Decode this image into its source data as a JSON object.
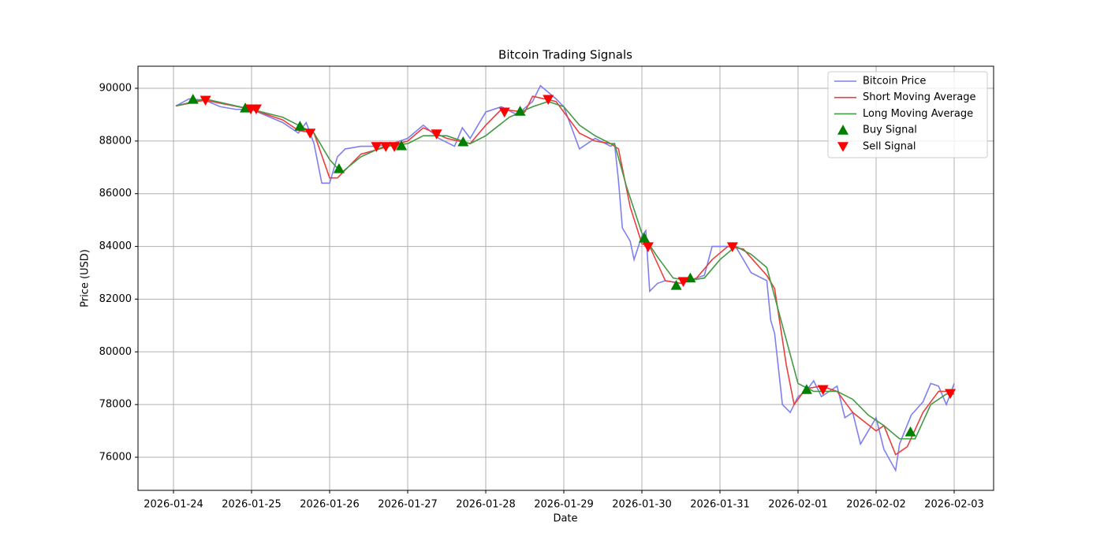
{
  "chart_data": {
    "type": "line",
    "title": "Bitcoin Trading Signals",
    "x_label": "Date",
    "y_label": "Price (USD)",
    "xlim": [
      -0.4545,
      10.505
    ],
    "ylim": [
      74744,
      90838
    ],
    "xticks": [
      {
        "value": 0,
        "label": "2026-01-24"
      },
      {
        "value": 1,
        "label": "2026-01-25"
      },
      {
        "value": 2,
        "label": "2026-01-26"
      },
      {
        "value": 3,
        "label": "2026-01-27"
      },
      {
        "value": 4,
        "label": "2026-01-28"
      },
      {
        "value": 5,
        "label": "2026-01-29"
      },
      {
        "value": 6,
        "label": "2026-01-30"
      },
      {
        "value": 7,
        "label": "2026-01-31"
      },
      {
        "value": 8,
        "label": "2026-02-01"
      },
      {
        "value": 9,
        "label": "2026-02-02"
      },
      {
        "value": 10,
        "label": "2026-02-03"
      }
    ],
    "yticks": [
      76000,
      78000,
      80000,
      82000,
      84000,
      86000,
      88000,
      90000
    ],
    "grid": true,
    "legend": "upper right",
    "series": [
      {
        "name": "Bitcoin Price",
        "kind": "line",
        "color": "#7f7ff0",
        "x": [
          0.03,
          0.2,
          0.4,
          0.6,
          0.8,
          1.0,
          1.2,
          1.4,
          1.6,
          1.7,
          1.8,
          1.9,
          2.0,
          2.1,
          2.2,
          2.4,
          2.6,
          2.8,
          3.0,
          3.2,
          3.4,
          3.6,
          3.7,
          3.8,
          4.0,
          4.2,
          4.4,
          4.6,
          4.7,
          4.9,
          5.0,
          5.1,
          5.2,
          5.4,
          5.6,
          5.65,
          5.7,
          5.75,
          5.85,
          5.9,
          6.0,
          6.05,
          6.1,
          6.2,
          6.3,
          6.5,
          6.6,
          6.8,
          6.9,
          7.0,
          7.2,
          7.4,
          7.6,
          7.65,
          7.7,
          7.8,
          7.9,
          8.0,
          8.1,
          8.2,
          8.3,
          8.5,
          8.6,
          8.7,
          8.8,
          9.0,
          9.1,
          9.25,
          9.3,
          9.45,
          9.6,
          9.7,
          9.8,
          9.9,
          10.0
        ],
        "values": [
          89330,
          89600,
          89550,
          89300,
          89200,
          89200,
          88950,
          88700,
          88300,
          88700,
          87900,
          86400,
          86400,
          87400,
          87700,
          87800,
          87800,
          87900,
          88100,
          88600,
          88100,
          87800,
          88500,
          88100,
          89100,
          89300,
          89000,
          89500,
          90100,
          89600,
          89300,
          88500,
          87700,
          88100,
          87800,
          87900,
          86500,
          84700,
          84200,
          83500,
          84400,
          84600,
          82300,
          82600,
          82700,
          82600,
          82700,
          82900,
          84000,
          84000,
          84000,
          83000,
          82700,
          81200,
          80700,
          78000,
          77700,
          78300,
          78500,
          78900,
          78300,
          78700,
          77500,
          77700,
          76500,
          77500,
          76300,
          75500,
          76500,
          77600,
          78100,
          78800,
          78700,
          78000,
          78800
        ]
      },
      {
        "name": "Short Moving Average",
        "kind": "line",
        "color": "#e8403f",
        "x": [
          0.03,
          0.4,
          1.0,
          1.4,
          1.6,
          1.8,
          2.0,
          2.1,
          2.4,
          3.0,
          3.2,
          3.5,
          3.8,
          4.0,
          4.2,
          4.5,
          4.6,
          4.9,
          5.2,
          5.4,
          5.6,
          5.7,
          5.85,
          6.0,
          6.1,
          6.3,
          6.5,
          6.7,
          6.9,
          7.1,
          7.3,
          7.6,
          7.7,
          7.85,
          7.95,
          8.1,
          8.3,
          8.5,
          8.7,
          9.0,
          9.1,
          9.25,
          9.4,
          9.6,
          9.8,
          10.0
        ],
        "values": [
          89330,
          89550,
          89200,
          88800,
          88400,
          88300,
          86600,
          86600,
          87500,
          88000,
          88500,
          88100,
          87900,
          88600,
          89200,
          89100,
          89700,
          89500,
          88300,
          88000,
          87900,
          87700,
          85500,
          84100,
          84000,
          82700,
          82600,
          82800,
          83500,
          84000,
          83900,
          82900,
          82400,
          79500,
          78000,
          78600,
          78700,
          78500,
          77700,
          77000,
          77200,
          76100,
          76400,
          77700,
          78500,
          78500
        ]
      },
      {
        "name": "Long Moving Average",
        "kind": "line",
        "color": "#449944",
        "x": [
          0.03,
          0.4,
          1.0,
          1.4,
          1.6,
          1.8,
          2.0,
          2.15,
          2.4,
          2.7,
          3.0,
          3.2,
          3.5,
          3.8,
          4.0,
          4.3,
          4.6,
          4.8,
          5.0,
          5.2,
          5.4,
          5.6,
          5.65,
          5.8,
          6.0,
          6.2,
          6.4,
          6.6,
          6.8,
          7.0,
          7.2,
          7.4,
          7.6,
          7.8,
          8.0,
          8.2,
          8.5,
          8.7,
          8.9,
          9.1,
          9.3,
          9.5,
          9.7,
          9.9,
          10.0
        ],
        "values": [
          89330,
          89600,
          89200,
          88900,
          88600,
          88300,
          87300,
          86800,
          87400,
          87800,
          87900,
          88200,
          88200,
          87900,
          88200,
          88900,
          89300,
          89500,
          89300,
          88600,
          88200,
          87900,
          87900,
          86300,
          84500,
          83600,
          82800,
          82700,
          82800,
          83500,
          84000,
          83700,
          83200,
          81000,
          78800,
          78500,
          78500,
          78200,
          77600,
          77200,
          76700,
          76700,
          78000,
          78400,
          78400
        ]
      },
      {
        "name": "Buy Signal",
        "kind": "scatter",
        "marker": "up",
        "color": "#008000",
        "x": [
          0.25,
          0.92,
          1.62,
          2.12,
          2.92,
          3.71,
          4.44,
          6.03,
          6.44,
          6.62,
          8.11,
          9.44
        ],
        "values": [
          89580,
          89250,
          88560,
          86950,
          87820,
          87970,
          89130,
          84320,
          82520,
          82800,
          78570,
          76960
        ]
      },
      {
        "name": "Sell Signal",
        "kind": "scatter",
        "marker": "down",
        "color": "#ff0000",
        "x": [
          0.41,
          0.99,
          1.06,
          1.75,
          2.6,
          2.72,
          2.83,
          3.37,
          4.24,
          4.8,
          6.08,
          6.53,
          7.16,
          8.32,
          9.95
        ],
        "values": [
          89550,
          89220,
          89220,
          88300,
          87790,
          87790,
          87790,
          88270,
          89100,
          89580,
          83990,
          82670,
          83990,
          78570,
          78420
        ]
      }
    ]
  }
}
